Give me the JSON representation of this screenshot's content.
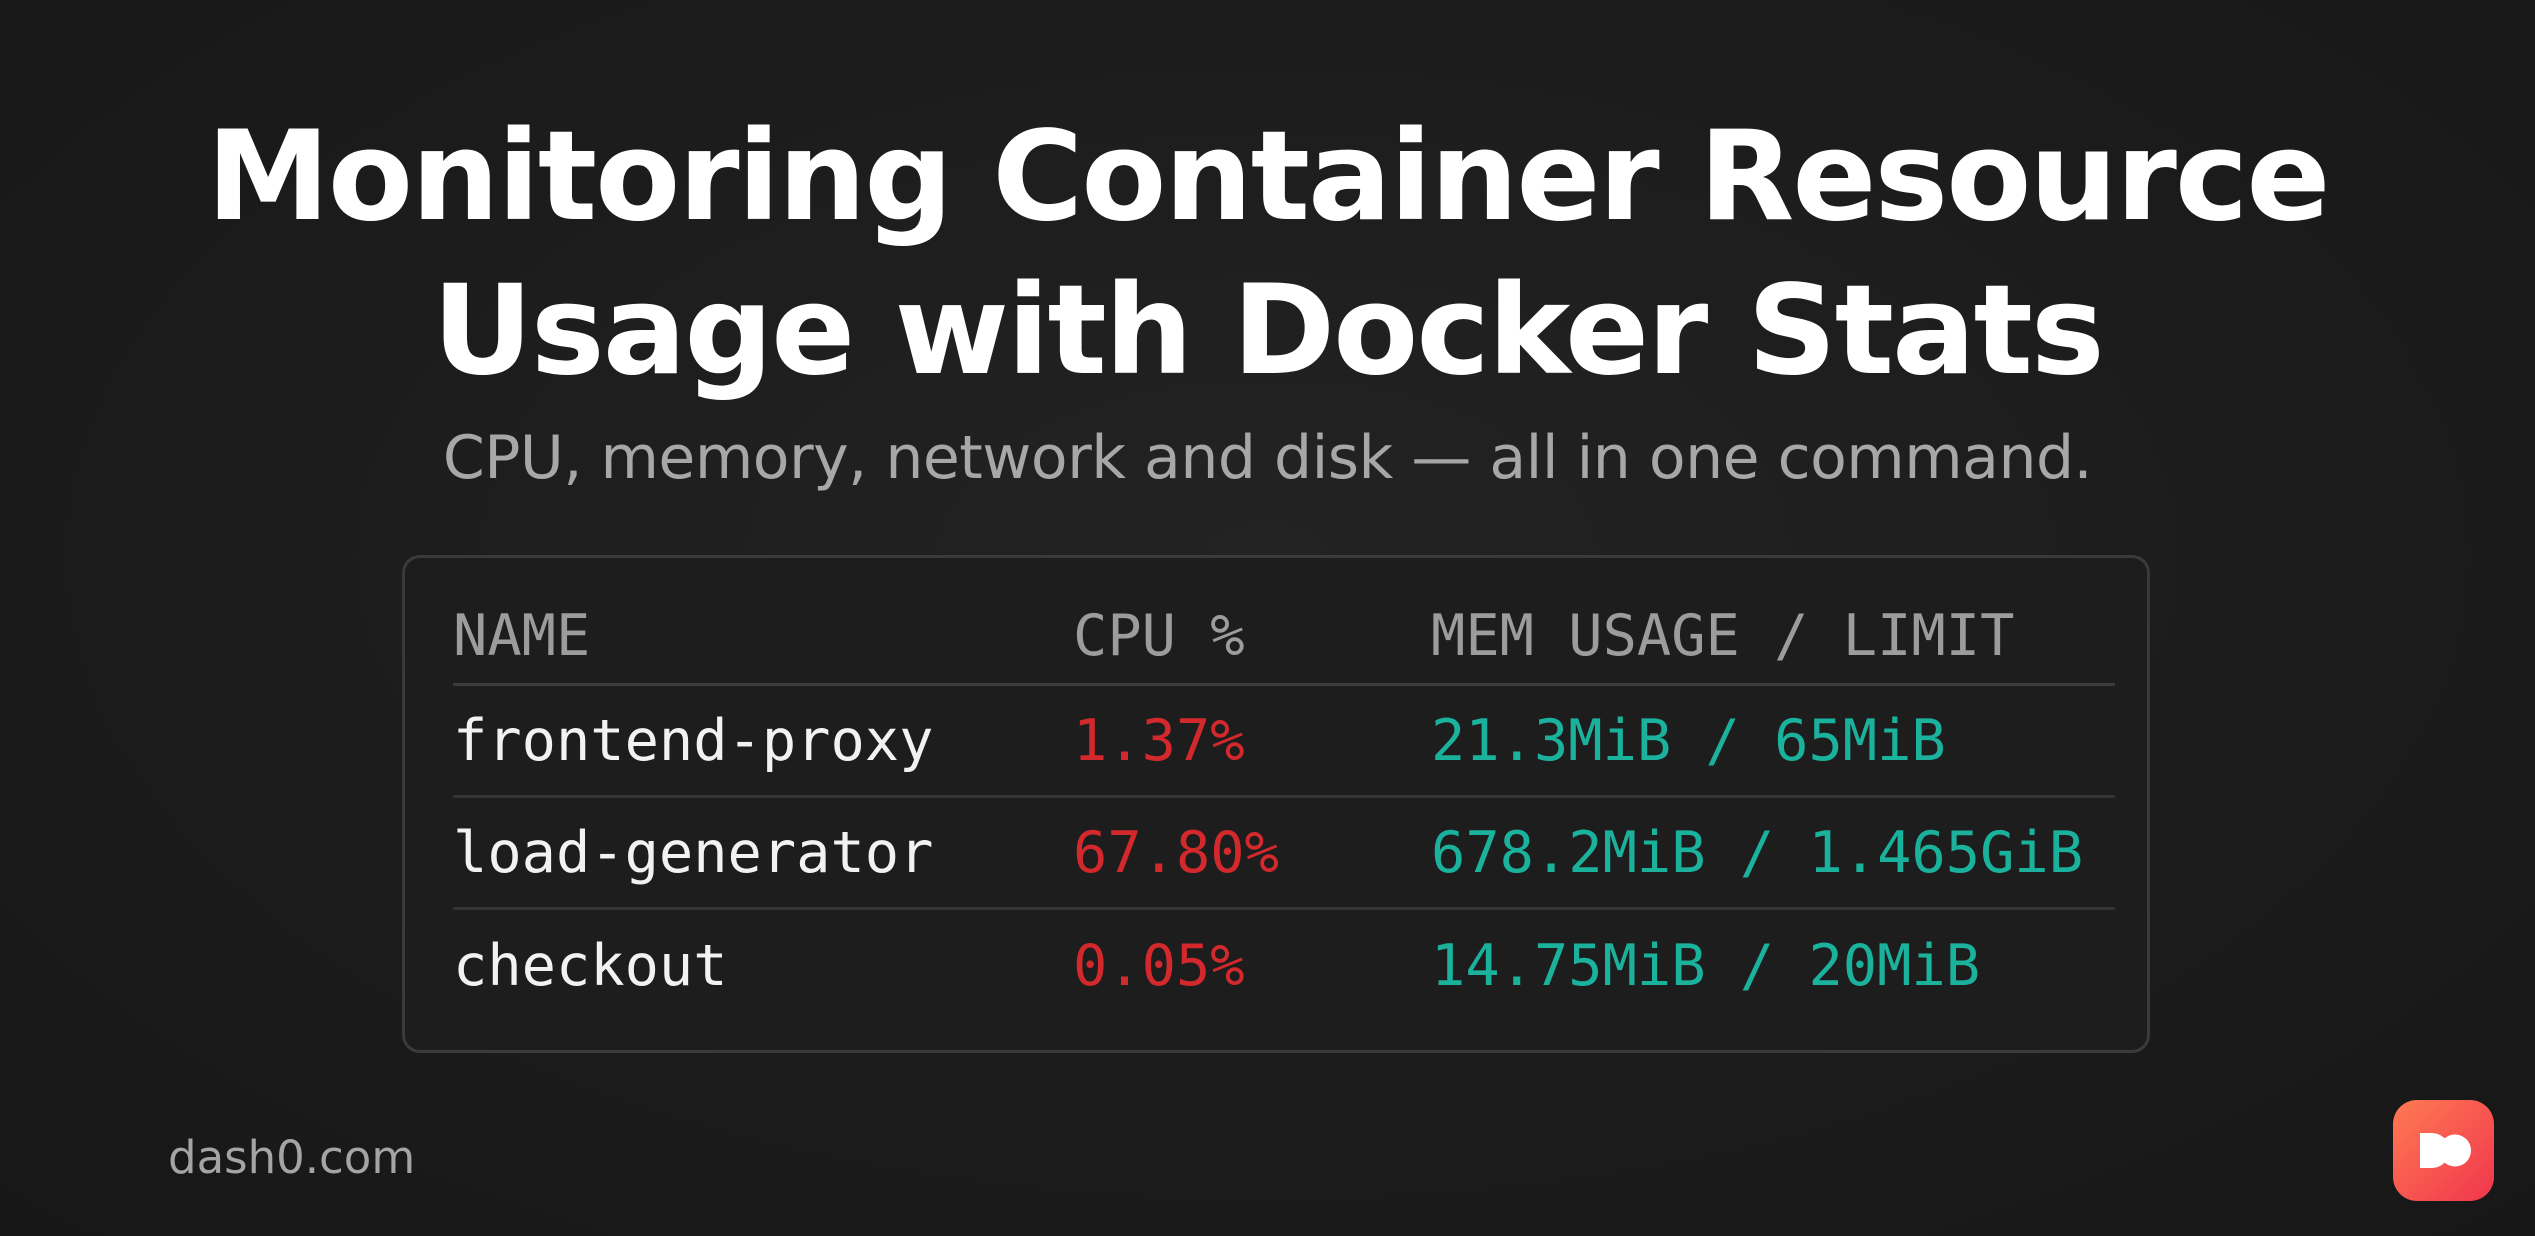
{
  "title": {
    "line1": "Monitoring Container Resource",
    "line2": "Usage with Docker Stats"
  },
  "subtitle": "CPU, memory, network and disk — all in one command.",
  "table": {
    "headers": {
      "name": "NAME",
      "cpu": "CPU %",
      "mem": "MEM USAGE / LIMIT"
    },
    "rows": [
      {
        "name": "frontend-proxy",
        "cpu": "1.37%",
        "mem": "21.3MiB / 65MiB"
      },
      {
        "name": "load-generator",
        "cpu": "67.80%",
        "mem": "678.2MiB / 1.465GiB"
      },
      {
        "name": "checkout",
        "cpu": "0.05%",
        "mem": "14.75MiB / 20MiB"
      }
    ]
  },
  "footer": {
    "site": "dash0.com"
  },
  "logo": {
    "icon": "dash0-logo-icon",
    "colors": [
      "#ff7a52",
      "#f0364d"
    ]
  },
  "colors": {
    "background": "#1c1c1c",
    "cpu_value": "#d3292d",
    "mem_value": "#1bb29d",
    "header_text": "#9c9c9c"
  }
}
